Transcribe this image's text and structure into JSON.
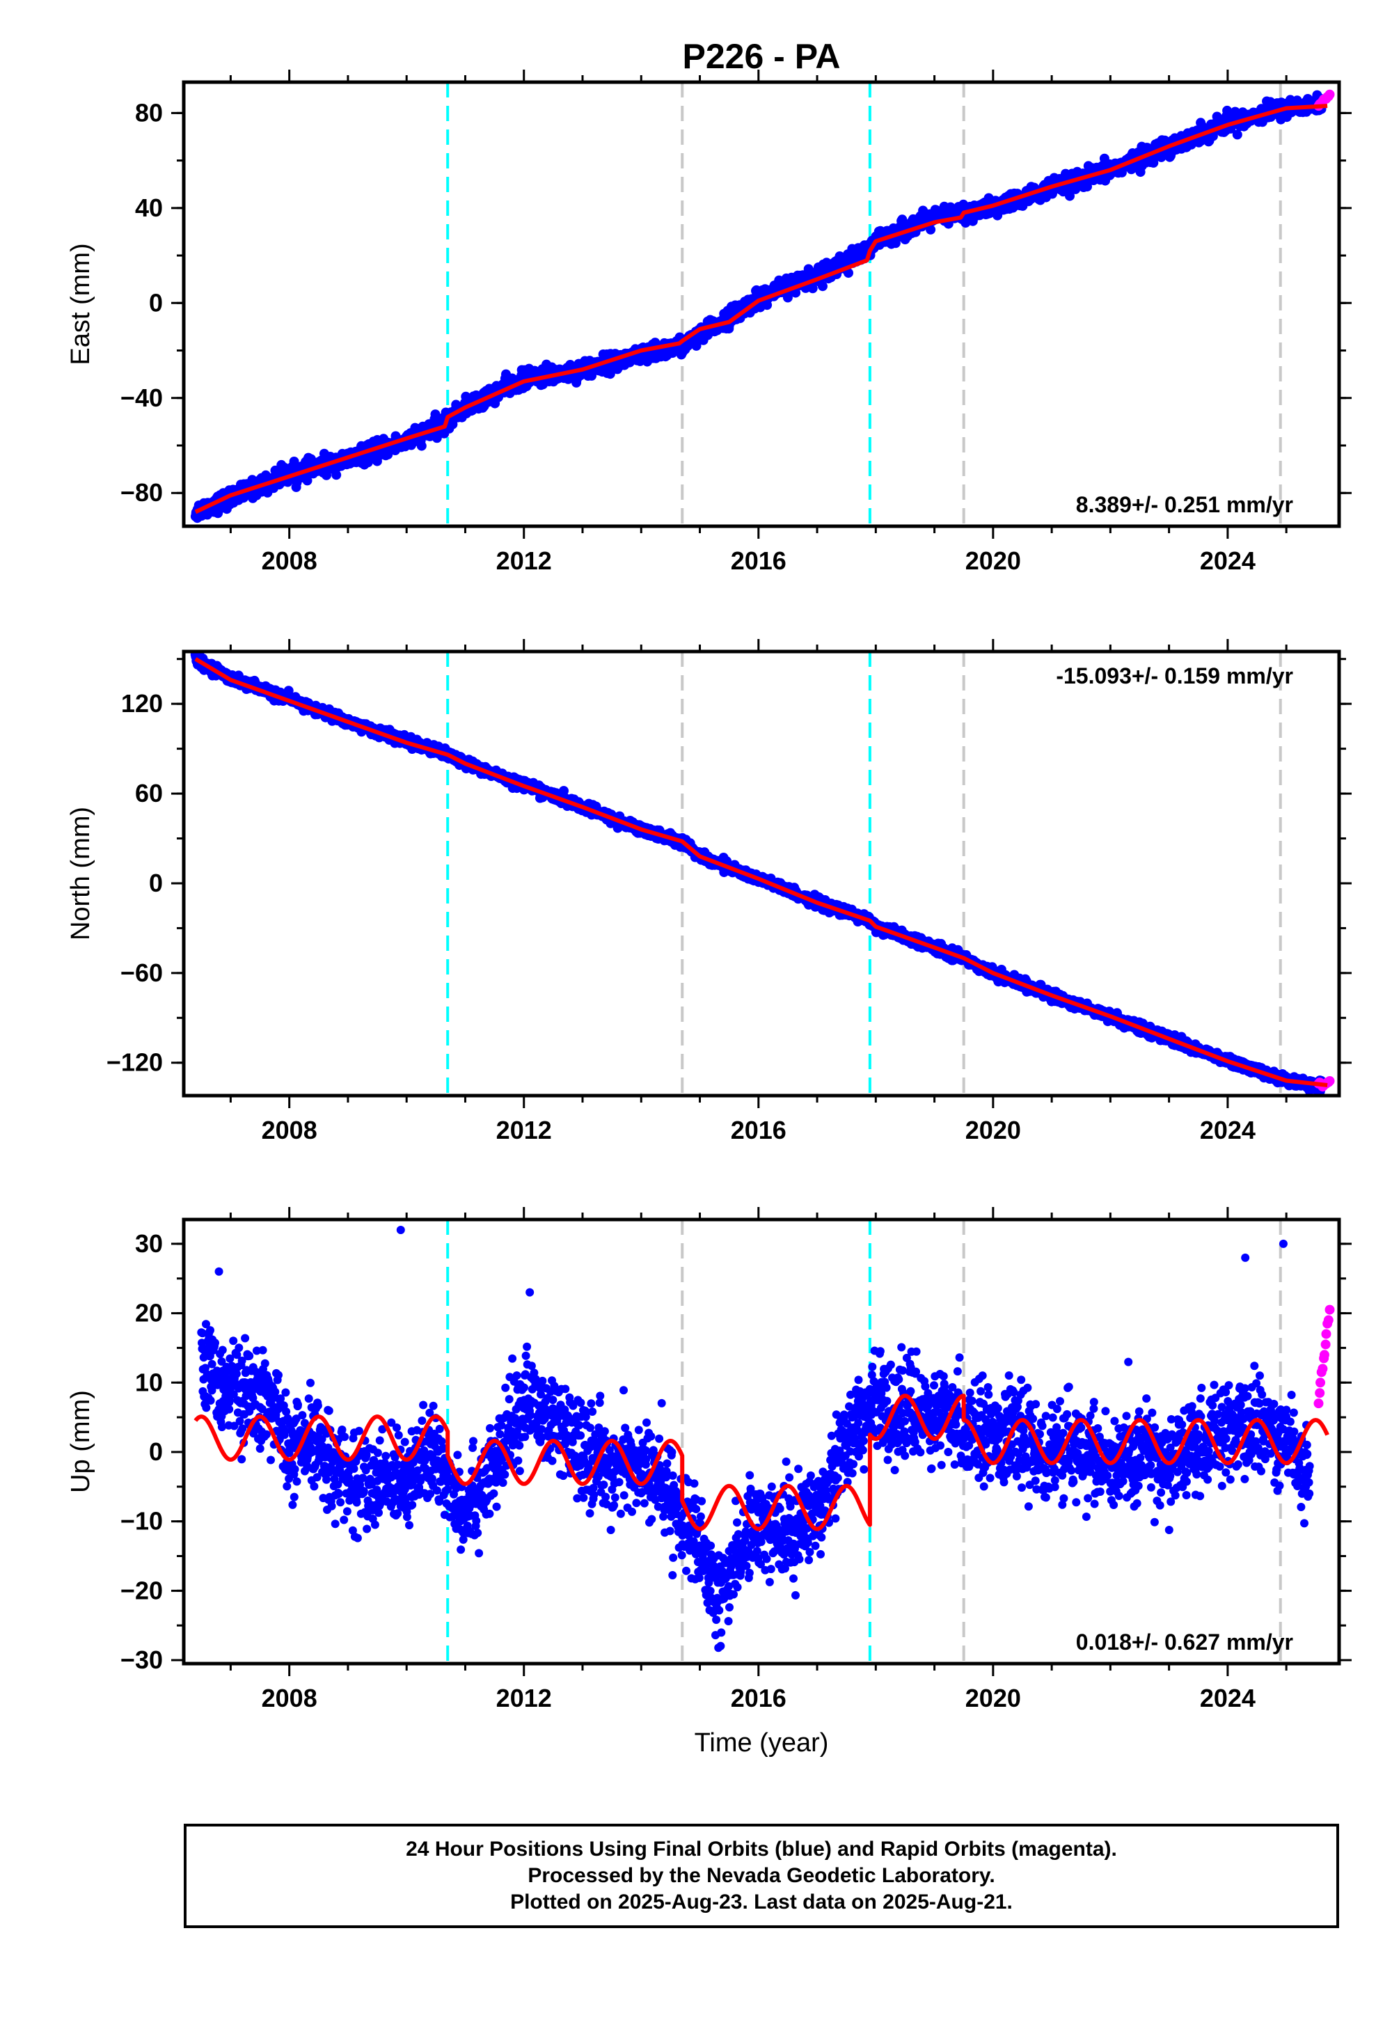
{
  "chart_data": [
    {
      "type": "scatter",
      "title": "P226 - PA",
      "ylabel": "East (mm)",
      "xlabel": "",
      "xlim": [
        2006.2,
        2025.9
      ],
      "ylim": [
        -94,
        93
      ],
      "x_ticks": [
        2008,
        2012,
        2016,
        2020,
        2024
      ],
      "y_ticks": [
        -80,
        -40,
        0,
        40,
        80
      ],
      "rate_label": "8.389+/- 0.251 mm/yr",
      "rate_position": "bottom-right",
      "series": [
        {
          "color": "#0000ff",
          "x": [
            2006.4,
            2007.0,
            2008.0,
            2009.0,
            2010.0,
            2010.7,
            2011.0,
            2012.0,
            2013.0,
            2014.0,
            2014.7,
            2015.0,
            2016.0,
            2017.0,
            2017.9,
            2018.0,
            2019.0,
            2019.5,
            2020.0,
            2021.0,
            2022.0,
            2023.0,
            2024.0,
            2025.0,
            2025.6
          ],
          "y": [
            -88,
            -82,
            -72,
            -66,
            -58,
            -50,
            -44,
            -32,
            -28,
            -22,
            -18,
            -14,
            2,
            12,
            22,
            26,
            36,
            38,
            40,
            48,
            56,
            66,
            76,
            82,
            84
          ]
        },
        {
          "color": "#ff00ff",
          "x": [
            2025.55,
            2025.62,
            2025.68,
            2025.72
          ],
          "y": [
            83,
            85,
            86,
            87
          ]
        }
      ],
      "fit": {
        "color": "#ff0000",
        "x": [
          2006.4,
          2007.0,
          2008.0,
          2009.0,
          2010.0,
          2010.65,
          2010.7,
          2011.0,
          2012.0,
          2013.0,
          2014.0,
          2014.65,
          2014.7,
          2015.0,
          2015.5,
          2016.0,
          2017.0,
          2017.85,
          2017.9,
          2018.0,
          2019.0,
          2019.45,
          2019.5,
          2020.0,
          2021.0,
          2022.0,
          2023.0,
          2024.0,
          2025.0,
          2025.7
        ],
        "y": [
          -88,
          -81,
          -73,
          -65,
          -57,
          -52,
          -48,
          -44,
          -33,
          -28,
          -20,
          -17,
          -16,
          -11,
          -8,
          1,
          10,
          18,
          22,
          26,
          34,
          36,
          38,
          41,
          49,
          56,
          66,
          75,
          82,
          83
        ]
      },
      "vlines": [
        {
          "x": 2010.7,
          "color": "#00ffff"
        },
        {
          "x": 2014.7,
          "color": "#c8c8c8"
        },
        {
          "x": 2017.9,
          "color": "#00ffff"
        },
        {
          "x": 2019.5,
          "color": "#c8c8c8"
        },
        {
          "x": 2024.9,
          "color": "#c8c8c8"
        }
      ]
    },
    {
      "type": "scatter",
      "title": "",
      "ylabel": "North (mm)",
      "xlabel": "",
      "xlim": [
        2006.2,
        2025.9
      ],
      "ylim": [
        -142,
        155
      ],
      "x_ticks": [
        2008,
        2012,
        2016,
        2020,
        2024
      ],
      "y_ticks": [
        -120,
        -60,
        0,
        60,
        120
      ],
      "rate_label": "-15.093+/- 0.159 mm/yr",
      "rate_position": "top-right",
      "series": [
        {
          "color": "#0000ff",
          "x": [
            2006.4,
            2007.0,
            2008.0,
            2009.0,
            2010.0,
            2010.7,
            2011.0,
            2012.0,
            2013.0,
            2014.0,
            2014.7,
            2015.0,
            2016.0,
            2017.0,
            2017.9,
            2018.0,
            2019.0,
            2019.5,
            2020.0,
            2021.0,
            2022.0,
            2023.0,
            2024.0,
            2025.0,
            2025.6
          ],
          "y": [
            150,
            137,
            123,
            108,
            95,
            86,
            80,
            66,
            51,
            36,
            28,
            18,
            3,
            -13,
            -25,
            -29,
            -43,
            -50,
            -60,
            -75,
            -89,
            -104,
            -119,
            -132,
            -135
          ]
        },
        {
          "color": "#ff00ff",
          "x": [
            2025.55,
            2025.62,
            2025.68,
            2025.72
          ],
          "y": [
            -134,
            -136,
            -134,
            -133
          ]
        }
      ],
      "fit": {
        "color": "#ff0000",
        "x": [
          2006.4,
          2007.0,
          2008.0,
          2009.0,
          2010.0,
          2010.7,
          2011.0,
          2012.0,
          2013.0,
          2014.0,
          2014.7,
          2015.0,
          2016.0,
          2017.0,
          2017.9,
          2018.0,
          2019.0,
          2019.5,
          2020.0,
          2021.0,
          2022.0,
          2023.0,
          2024.0,
          2025.0,
          2025.7
        ],
        "y": [
          150,
          136,
          122,
          108,
          94,
          86,
          80,
          65,
          51,
          36,
          28,
          18,
          3,
          -13,
          -25,
          -29,
          -43,
          -50,
          -60,
          -75,
          -89,
          -104,
          -119,
          -132,
          -135
        ]
      },
      "vlines": [
        {
          "x": 2010.7,
          "color": "#00ffff"
        },
        {
          "x": 2014.7,
          "color": "#c8c8c8"
        },
        {
          "x": 2017.9,
          "color": "#00ffff"
        },
        {
          "x": 2019.5,
          "color": "#c8c8c8"
        },
        {
          "x": 2024.9,
          "color": "#c8c8c8"
        }
      ]
    },
    {
      "type": "scatter",
      "title": "",
      "ylabel": "Up (mm)",
      "xlabel": "Time (year)",
      "xlim": [
        2006.2,
        2025.9
      ],
      "ylim": [
        -30.5,
        33.5
      ],
      "x_ticks": [
        2008,
        2012,
        2016,
        2020,
        2024
      ],
      "y_ticks": [
        -30,
        -20,
        -10,
        0,
        10,
        20,
        30
      ],
      "rate_label": "0.018+/- 0.627 mm/yr",
      "rate_position": "bottom-right",
      "series": [
        {
          "color": "#0000ff",
          "x": [
            2006.5,
            2006.9,
            2007.3,
            2007.7,
            2008.0,
            2008.5,
            2009.0,
            2009.5,
            2010.0,
            2010.5,
            2011.0,
            2011.5,
            2012.0,
            2012.5,
            2013.0,
            2013.5,
            2014.0,
            2014.5,
            2015.0,
            2015.3,
            2015.6,
            2016.0,
            2016.5,
            2017.0,
            2017.5,
            2018.0,
            2018.5,
            2019.0,
            2019.5,
            2020.0,
            2020.5,
            2021.0,
            2021.5,
            2022.0,
            2022.5,
            2023.0,
            2023.5,
            2024.0,
            2024.5,
            2025.0,
            2025.4
          ],
          "y": [
            12,
            10,
            8,
            7,
            0,
            1,
            -4,
            -5,
            -3,
            -1,
            -8,
            -3,
            8,
            4,
            0,
            -2,
            -2,
            -6,
            -14,
            -22,
            -15,
            -10,
            -12,
            -8,
            2,
            7,
            6,
            5,
            4,
            3,
            2,
            -1,
            1,
            -3,
            0,
            -2,
            1,
            3,
            4,
            2,
            -3
          ],
          "outliers_x": [
            2009.9,
            2012.1,
            2024.3,
            2024.95,
            2006.8
          ],
          "outliers_y": [
            32,
            23,
            28,
            30,
            26
          ]
        },
        {
          "color": "#ff00ff",
          "x": [
            2025.55,
            2025.58,
            2025.62,
            2025.65,
            2025.68,
            2025.72
          ],
          "y": [
            7,
            10,
            12,
            14,
            17,
            19
          ]
        }
      ],
      "fit": {
        "color": "#ff0000",
        "amplitude": 3.1,
        "segments": [
          {
            "x_start": 2006.4,
            "x_end": 2010.7,
            "offset": 2
          },
          {
            "x_start": 2010.7,
            "x_end": 2014.7,
            "offset": -1.5
          },
          {
            "x_start": 2014.7,
            "x_end": 2017.9,
            "offset": -8
          },
          {
            "x_start": 2017.9,
            "x_end": 2019.5,
            "offset": 5
          },
          {
            "x_start": 2019.5,
            "x_end": 2025.7,
            "offset": 1.5
          }
        ]
      },
      "vlines": [
        {
          "x": 2010.7,
          "color": "#00ffff"
        },
        {
          "x": 2014.7,
          "color": "#c8c8c8"
        },
        {
          "x": 2017.9,
          "color": "#00ffff"
        },
        {
          "x": 2019.5,
          "color": "#c8c8c8"
        },
        {
          "x": 2024.9,
          "color": "#c8c8c8"
        }
      ]
    }
  ],
  "footer": {
    "line1": "24 Hour Positions Using Final Orbits (blue) and Rapid Orbits (magenta).",
    "line2": "Processed by the Nevada Geodetic Laboratory.",
    "line3": "Plotted on 2025-Aug-23. Last data on 2025-Aug-21."
  }
}
